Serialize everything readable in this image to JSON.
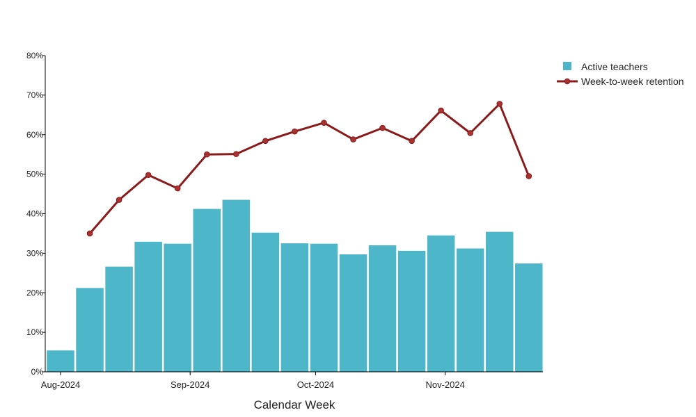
{
  "chart_data": {
    "type": "bar+line",
    "xlabel": "Calendar Week",
    "ylim": [
      0,
      80
    ],
    "y_ticks": [
      "0%",
      "10%",
      "20%",
      "30%",
      "40%",
      "50%",
      "60%",
      "70%",
      "80%"
    ],
    "x_tick_labels": [
      {
        "label": "Aug-2024",
        "date": "2024-08-01"
      },
      {
        "label": "Sep-2024",
        "date": "2024-09-01"
      },
      {
        "label": "Oct-2024",
        "date": "2024-10-01"
      },
      {
        "label": "Nov-2024",
        "date": "2024-11-01"
      }
    ],
    "x": [
      "2024-08-01",
      "2024-08-08",
      "2024-08-15",
      "2024-08-22",
      "2024-08-29",
      "2024-09-05",
      "2024-09-12",
      "2024-09-19",
      "2024-09-26",
      "2024-10-03",
      "2024-10-10",
      "2024-10-17",
      "2024-10-24",
      "2024-10-31",
      "2024-11-07",
      "2024-11-14",
      "2024-11-21"
    ],
    "series": [
      {
        "name": "Active teachers",
        "type": "bar",
        "color": "#4db6c9",
        "values": [
          5.5,
          21.3,
          26.7,
          33.0,
          32.5,
          41.3,
          43.6,
          35.3,
          32.6,
          32.5,
          29.8,
          32.1,
          30.7,
          34.6,
          31.3,
          35.5,
          27.5
        ]
      },
      {
        "name": "Week-to-week retention",
        "type": "line",
        "color": "#8b1a1a",
        "values": [
          null,
          35.0,
          43.5,
          49.8,
          46.4,
          55.0,
          55.1,
          58.4,
          60.8,
          63.0,
          58.8,
          61.7,
          58.4,
          66.1,
          60.4,
          67.8,
          49.5
        ]
      }
    ],
    "legend_position": "top-right",
    "grid": false
  }
}
